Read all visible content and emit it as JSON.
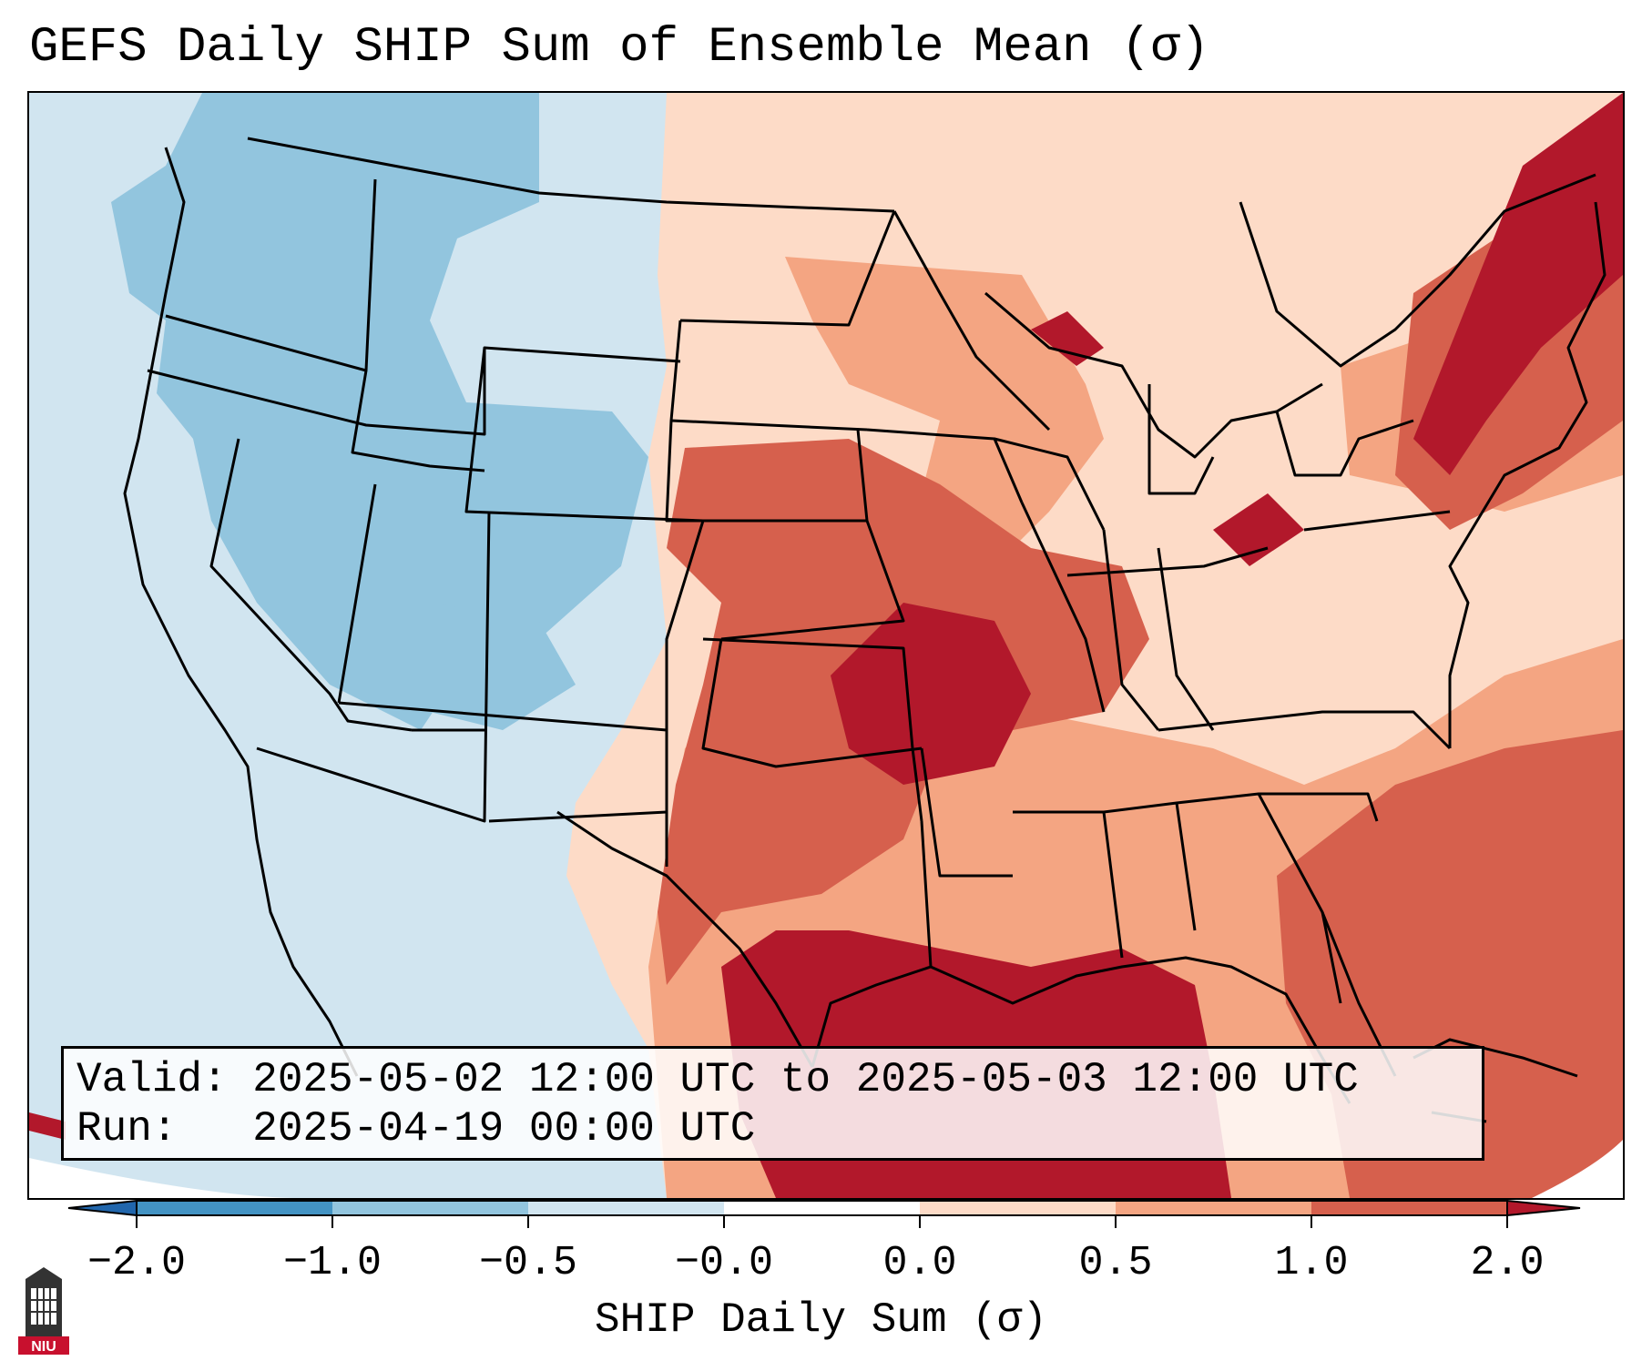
{
  "title": "GEFS Daily SHIP Sum of Ensemble Mean (σ)",
  "valid": {
    "valid_line": "Valid: 2025-05-02 12:00 UTC to 2025-05-03 12:00 UTC",
    "run_line": "Run:   2025-04-19 00:00 UTC"
  },
  "colorbar": {
    "label": "SHIP Daily Sum (σ)",
    "ticks": [
      "−2.0",
      "−1.0",
      "−0.5",
      "−0.0",
      "0.0",
      "0.5",
      "1.0",
      "2.0"
    ],
    "colors": [
      "#4393c3",
      "#92c5de",
      "#d1e5f0",
      "#ffffff",
      "#fddbc7",
      "#f4a582",
      "#d6604d",
      "#b2182b"
    ],
    "under_color": "#2166ac",
    "over_color": "#b2182b",
    "extend": "both"
  },
  "logo": {
    "text": "NIU",
    "icon": "niu-university-logo"
  }
}
